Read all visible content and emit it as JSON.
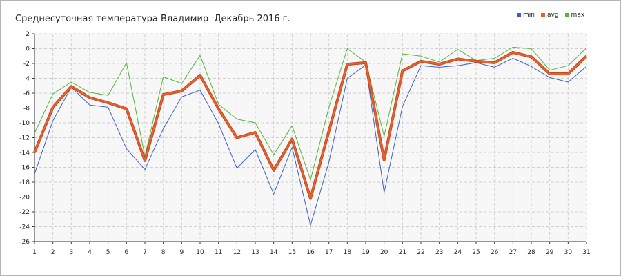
{
  "chart_data": {
    "type": "line",
    "title": "Среднесуточная температура Владимир  Декабрь 2016 г.",
    "xlabel": "",
    "ylabel": "",
    "x": [
      1,
      2,
      3,
      4,
      5,
      6,
      7,
      8,
      9,
      10,
      11,
      12,
      13,
      14,
      15,
      16,
      17,
      18,
      19,
      20,
      21,
      22,
      23,
      24,
      25,
      26,
      27,
      28,
      29,
      30,
      31
    ],
    "ylim": [
      -26,
      2
    ],
    "yticks": [
      2,
      0,
      -2,
      -4,
      -6,
      -8,
      -10,
      -12,
      -14,
      -16,
      -18,
      -20,
      -22,
      -24,
      -26
    ],
    "grid": true,
    "legend_position": "top-right",
    "series": [
      {
        "name": "min",
        "color": "#3a5fcd",
        "values": [
          -16.9,
          -9.7,
          -5.2,
          -7.6,
          -7.9,
          -13.5,
          -16.3,
          -10.8,
          -6.5,
          -5.6,
          -10.1,
          -16.1,
          -13.6,
          -19.6,
          -13.3,
          -23.8,
          -15.3,
          -4.0,
          -2.2,
          -19.4,
          -7.8,
          -2.3,
          -2.5,
          -2.3,
          -1.9,
          -2.5,
          -1.3,
          -2.4,
          -3.9,
          -4.5,
          -2.4
        ]
      },
      {
        "name": "avg",
        "color": "#e8602c",
        "values": [
          -14.0,
          -7.9,
          -5.1,
          -6.6,
          -7.3,
          -8.1,
          -15.1,
          -6.2,
          -5.7,
          -3.6,
          -8.1,
          -12.0,
          -11.3,
          -16.4,
          -12.2,
          -20.2,
          -11.1,
          -2.1,
          -1.9,
          -15.0,
          -3.0,
          -1.7,
          -2.1,
          -1.4,
          -1.7,
          -1.9,
          -0.5,
          -1.1,
          -3.4,
          -3.4,
          -1.0
        ]
      },
      {
        "name": "max",
        "color": "#55b43c",
        "values": [
          -11.4,
          -6.1,
          -4.5,
          -5.9,
          -6.3,
          -1.9,
          -14.5,
          -3.8,
          -4.7,
          -0.9,
          -7.5,
          -9.5,
          -10.0,
          -14.3,
          -10.4,
          -17.7,
          -7.9,
          0.0,
          -1.8,
          -11.8,
          -0.7,
          -1.0,
          -1.8,
          -0.1,
          -1.6,
          -1.3,
          0.2,
          0.0,
          -2.9,
          -2.3,
          0.1
        ]
      }
    ]
  }
}
